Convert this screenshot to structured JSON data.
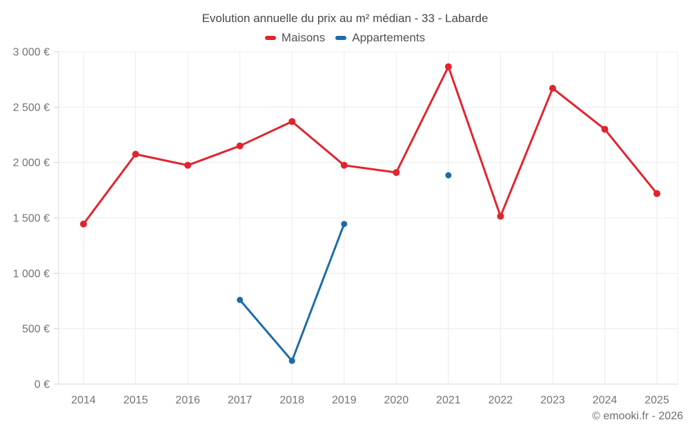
{
  "chart": {
    "title": "Evolution annuelle du prix au m² médian - 33 - Labarde",
    "credit": "© emooki.fr - 2026"
  },
  "legend": {
    "items": [
      {
        "label": "Maisons",
        "color": "#e1242d"
      },
      {
        "label": "Appartements",
        "color": "#1b6ca8"
      }
    ]
  },
  "chart_data": {
    "type": "line",
    "title": "Evolution annuelle du prix au m² médian - 33 - Labarde",
    "categories": [
      "2014",
      "2015",
      "2016",
      "2017",
      "2018",
      "2019",
      "2020",
      "2021",
      "2022",
      "2023",
      "2024",
      "2025"
    ],
    "series": [
      {
        "name": "Maisons",
        "color": "#e1242d",
        "marker_radius": 5,
        "values": [
          1445,
          2075,
          1975,
          2150,
          2370,
          1975,
          1910,
          2865,
          1515,
          2670,
          2300,
          1720
        ]
      },
      {
        "name": "Appartements",
        "color": "#1b6ca8",
        "marker_radius": 4.5,
        "values": [
          null,
          null,
          null,
          760,
          210,
          1445,
          null,
          1885,
          null,
          null,
          null,
          null
        ]
      }
    ],
    "xlabel": "",
    "ylabel": "",
    "ylim": [
      0,
      3000
    ],
    "y_tick_step": 500,
    "y_ticks": [
      {
        "value": 0,
        "label": "0 €"
      },
      {
        "value": 500,
        "label": "500 €"
      },
      {
        "value": 1000,
        "label": "1 000 €"
      },
      {
        "value": 1500,
        "label": "1 500 €"
      },
      {
        "value": 2000,
        "label": "2 000 €"
      },
      {
        "value": 2500,
        "label": "2 500 €"
      },
      {
        "value": 3000,
        "label": "3 000 €"
      }
    ],
    "grid": true,
    "legend_position": "top",
    "unit": "€"
  }
}
